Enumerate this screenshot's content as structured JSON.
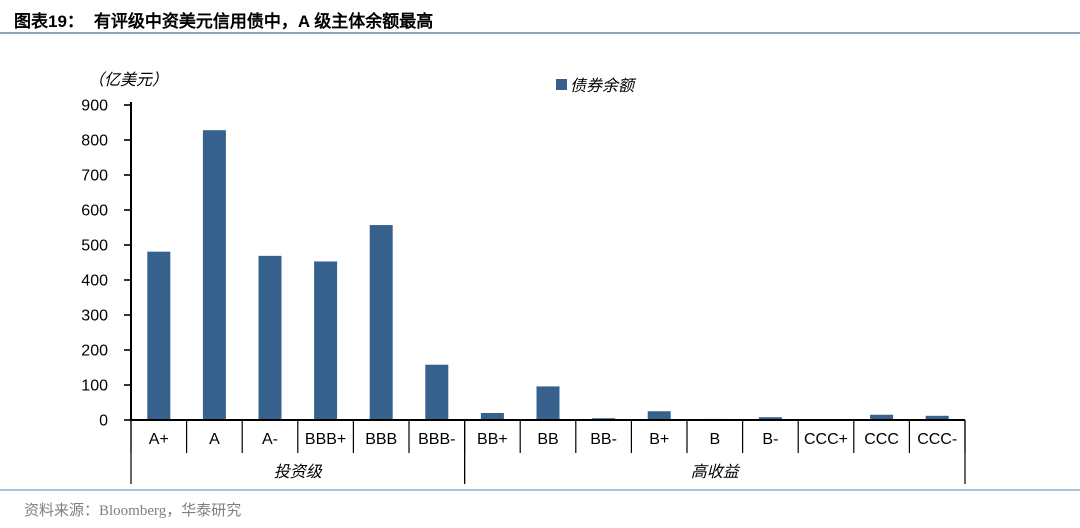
{
  "header": {
    "figure_label": "图表19：",
    "title": "有评级中资美元信用债中，A 级主体余额最高"
  },
  "chart_data": {
    "type": "bar",
    "title": "有评级中资美元信用债中，A 级主体余额最高",
    "unit_label": "（亿美元）",
    "legend": "债券余额",
    "legend_position": "top-center",
    "xlabel": "",
    "ylabel": "（亿美元）",
    "ylim": [
      0,
      900
    ],
    "ytick_step": 100,
    "grid": false,
    "categories": [
      "A+",
      "A",
      "A-",
      "BBB+",
      "BBB",
      "BBB-",
      "BB+",
      "BB",
      "BB-",
      "B+",
      "B",
      "B-",
      "CCC+",
      "CCC",
      "CCC-"
    ],
    "values": [
      481,
      828,
      469,
      453,
      557,
      158,
      20,
      96,
      5,
      25,
      3,
      8,
      1,
      15,
      12
    ],
    "groups": [
      {
        "label": "投资级",
        "start": 0,
        "end": 5
      },
      {
        "label": "高收益",
        "start": 6,
        "end": 14
      }
    ]
  },
  "colors": {
    "bar": "#36618C",
    "axis": "#000000",
    "title_rule": "#8CA6C0",
    "footer_rule": "#A9C4DD",
    "source_text": "#7F7F7F"
  },
  "footer": {
    "source": "资料来源：Bloomberg，华泰研究"
  }
}
